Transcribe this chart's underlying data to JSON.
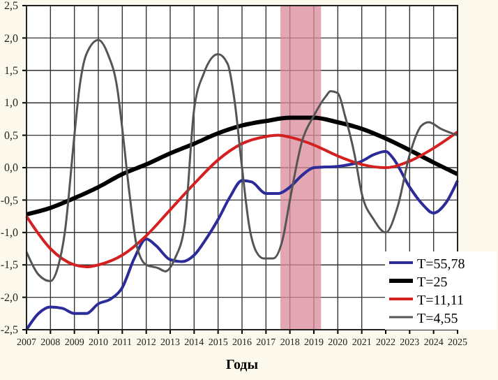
{
  "chart_data": {
    "type": "line",
    "xlabel": "Годы",
    "xlim": [
      2007,
      2025
    ],
    "ylim": [
      -2.5,
      2.5
    ],
    "xticks": [
      2007,
      2008,
      2009,
      2010,
      2011,
      2012,
      2013,
      2014,
      2015,
      2016,
      2017,
      2018,
      2019,
      2020,
      2021,
      2022,
      2023,
      2024,
      2025
    ],
    "yticks": [
      {
        "value": -2.5,
        "label": "-2,5"
      },
      {
        "value": -2,
        "label": "-2,0"
      },
      {
        "value": -1.5,
        "label": "-1,5"
      },
      {
        "value": -1,
        "label": "-1,0"
      },
      {
        "value": -0.5,
        "label": "-0,5"
      },
      {
        "value": 0,
        "label": "0,0"
      },
      {
        "value": 0.5,
        "label": "0,5"
      },
      {
        "value": 1,
        "label": "1,0"
      },
      {
        "value": 1.5,
        "label": "1,5"
      },
      {
        "value": 2,
        "label": "2,0"
      },
      {
        "value": 2.5,
        "label": "2,5"
      }
    ],
    "grid": true,
    "legend": "bottom right",
    "marker": "none",
    "line_style": "solid",
    "bands": [
      {
        "axis": "x",
        "from": 2017.6,
        "to": 2019.3,
        "color": "#d98a9a"
      }
    ],
    "series": [
      {
        "name": "T=55,78",
        "color": "#2b2b9a",
        "x": [
          2007,
          2007.5,
          2008,
          2008.5,
          2009,
          2009.5,
          2010,
          2010.5,
          2011,
          2011.5,
          2012,
          2012.4,
          2013,
          2013.5,
          2014,
          2014.5,
          2015,
          2015.5,
          2016,
          2016.4,
          2017,
          2017.5,
          2018,
          2018.5,
          2019,
          2020,
          2021,
          2021.5,
          2022,
          2022.3,
          2023,
          2023.5,
          2024,
          2024.5,
          2025
        ],
        "values": [
          -2.5,
          -2.25,
          -2.15,
          -2.17,
          -2.25,
          -2.25,
          -2.1,
          -2.03,
          -1.85,
          -1.4,
          -1.1,
          -1.2,
          -1.42,
          -1.45,
          -1.35,
          -1.1,
          -0.8,
          -0.45,
          -0.2,
          -0.22,
          -0.4,
          -0.4,
          -0.3,
          -0.12,
          0,
          0.02,
          0.1,
          0.2,
          0.25,
          0.15,
          -0.3,
          -0.55,
          -0.7,
          -0.55,
          -0.2
        ]
      },
      {
        "name": "T=25",
        "color": "#000000",
        "x": [
          2007,
          2008,
          2009,
          2010,
          2011,
          2012,
          2013,
          2014,
          2015,
          2016,
          2017,
          2018,
          2019,
          2020,
          2021,
          2022,
          2023,
          2024,
          2025
        ],
        "values": [
          -0.72,
          -0.62,
          -0.47,
          -0.3,
          -0.1,
          0.05,
          0.22,
          0.37,
          0.53,
          0.65,
          0.72,
          0.77,
          0.77,
          0.7,
          0.6,
          0.45,
          0.27,
          0.08,
          -0.1
        ]
      },
      {
        "name": "T=11,11",
        "color": "#d42020",
        "x": [
          2007,
          2008,
          2009,
          2009.5,
          2010,
          2011,
          2012,
          2013,
          2014,
          2015,
          2016,
          2017,
          2017.5,
          2018,
          2019,
          2020,
          2021,
          2022,
          2023,
          2024,
          2025
        ],
        "values": [
          -0.75,
          -1.25,
          -1.5,
          -1.53,
          -1.5,
          -1.35,
          -1.05,
          -0.65,
          -0.25,
          0.12,
          0.37,
          0.48,
          0.5,
          0.47,
          0.35,
          0.18,
          0.05,
          0,
          0.1,
          0.3,
          0.55
        ]
      },
      {
        "name": "T=4,55",
        "color": "#555555",
        "x": [
          2007,
          2007.5,
          2008,
          2008.3,
          2008.6,
          2009,
          2009.2,
          2009.5,
          2010,
          2010.4,
          2010.8,
          2011,
          2011.3,
          2011.6,
          2012,
          2012.5,
          2012.8,
          2013.2,
          2013.6,
          2014,
          2014.4,
          2015,
          2015.4,
          2015.7,
          2016,
          2016.3,
          2016.6,
          2016.9,
          2017.3,
          2017.7,
          2018,
          2018.5,
          2019,
          2019.5,
          2019.7,
          2020,
          2020.3,
          2020.7,
          2021,
          2021.5,
          2022,
          2022.5,
          2023,
          2023.5,
          2023.8,
          2024.3,
          2025
        ],
        "values": [
          -1.3,
          -1.65,
          -1.75,
          -1.55,
          -1,
          0.5,
          1.2,
          1.75,
          1.97,
          1.75,
          1.2,
          0.6,
          -0.4,
          -1.2,
          -1.5,
          -1.55,
          -1.6,
          -1.4,
          -0.9,
          0.9,
          1.45,
          1.75,
          1.6,
          1,
          0,
          -0.9,
          -1.3,
          -1.4,
          -1.4,
          -1.1,
          -0.5,
          0.4,
          0.8,
          1.1,
          1.18,
          1.15,
          0.8,
          0.2,
          -0.4,
          -0.8,
          -1,
          -0.6,
          0.2,
          0.65,
          0.7,
          0.6,
          0.5
        ]
      }
    ]
  }
}
